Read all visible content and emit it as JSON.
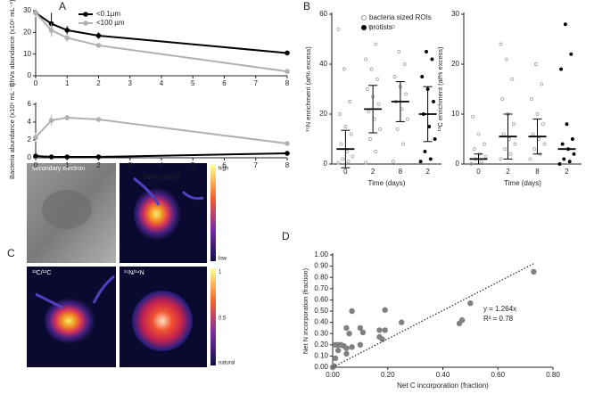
{
  "chart_data": [
    {
      "type": "line",
      "panel": "A",
      "ylabel": "EhVs abundance (x10⁶ mL⁻¹)",
      "legend": "top-right",
      "x": [
        0,
        0.5,
        1,
        2,
        8
      ],
      "xlim": [
        0,
        8
      ],
      "xticks": [
        0,
        1,
        2,
        3,
        4,
        5,
        6,
        7,
        8
      ],
      "ylim": [
        0,
        30
      ],
      "yticks": [
        0,
        10,
        20,
        30
      ],
      "series": [
        {
          "name": "<0.1µm",
          "color": "#000000",
          "values": [
            29,
            24,
            21,
            18.5,
            10.5
          ],
          "errors": [
            2,
            5,
            2,
            1.5,
            1
          ]
        },
        {
          "name": "<100 µm",
          "color": "#b0b0b0",
          "values": [
            29,
            21,
            17.5,
            14,
            2
          ],
          "errors": [
            2,
            3,
            2,
            1,
            0.8
          ]
        }
      ]
    },
    {
      "type": "line",
      "ylabel": "Bacteria abundance (x10⁶ mL⁻¹)",
      "xlabel": "Time (days)",
      "x": [
        0,
        0.5,
        1,
        2,
        8
      ],
      "xlim": [
        0,
        8
      ],
      "xticks": [
        0,
        1,
        2,
        3,
        4,
        5,
        6,
        7,
        8
      ],
      "ylim": [
        0,
        6
      ],
      "yticks": [
        0,
        2,
        4,
        6
      ],
      "series": [
        {
          "color": "#000000",
          "values": [
            0.2,
            0.1,
            0.1,
            0.1,
            0.5
          ],
          "errors": [
            0.1,
            0.1,
            0.1,
            0.1,
            0.1
          ]
        },
        {
          "color": "#b0b0b0",
          "values": [
            2.3,
            4.2,
            4.5,
            4.3,
            1.6
          ],
          "errors": [
            0.5,
            0.6,
            0.3,
            0.1,
            0.2
          ]
        }
      ]
    },
    {
      "type": "strip",
      "panel": "B",
      "ylabel": "¹⁵N enrichment (at% excess)",
      "xlabel": "Time (days)",
      "legend": "top-center",
      "categories": [
        "0",
        "2",
        "8",
        "2"
      ],
      "ylim": [
        0,
        60
      ],
      "yticks": [
        0,
        20,
        40,
        60
      ],
      "series": [
        {
          "name": "bacteria sized ROIs",
          "color": "#999999",
          "marker": "open",
          "values": [
            6,
            22,
            25,
            null
          ],
          "errors": [
            7.5,
            9.5,
            8,
            null
          ],
          "points": [
            [
              0.5,
              1,
              2,
              3,
              5,
              8,
              12,
              15,
              20,
              25,
              38,
              54
            ],
            [
              0.5,
              5,
              10,
              14,
              18,
              21,
              24,
              27,
              30,
              34,
              38,
              42,
              48,
              55
            ],
            [
              1,
              8,
              14,
              18,
              22,
              25,
              28,
              31,
              35,
              40,
              45,
              55
            ],
            null
          ]
        },
        {
          "name": "protists",
          "color": "#000000",
          "marker": "filled",
          "values": [
            null,
            null,
            null,
            20
          ],
          "errors": [
            null,
            null,
            null,
            11
          ],
          "points": [
            null,
            null,
            null,
            [
              1,
              2,
              5,
              10,
              15,
              20,
              25,
              30,
              35,
              42,
              45
            ]
          ]
        }
      ]
    },
    {
      "type": "strip",
      "ylabel": "¹³C enrichment (at% excess)",
      "xlabel": "Time (days)",
      "categories": [
        "0",
        "2",
        "8",
        "2"
      ],
      "ylim": [
        0,
        30
      ],
      "yticks": [
        0,
        10,
        20,
        30
      ],
      "series": [
        {
          "color": "#999999",
          "marker": "open",
          "values": [
            1,
            5.5,
            5.5,
            null
          ],
          "errors": [
            1,
            4.5,
            3.5,
            null
          ],
          "points": [
            [
              0,
              0.5,
              1,
              1.5,
              2,
              3,
              4,
              6,
              9.5
            ],
            [
              1,
              2,
              3,
              4,
              5,
              6,
              8,
              10,
              13,
              17,
              21,
              24
            ],
            [
              1,
              2,
              3,
              4,
              5,
              6,
              8,
              10,
              13,
              16,
              20
            ],
            null
          ]
        },
        {
          "color": "#000000",
          "marker": "filled",
          "values": [
            null,
            null,
            null,
            3
          ],
          "errors": [
            null,
            null,
            null,
            null
          ],
          "points": [
            null,
            null,
            null,
            [
              0,
              0.5,
              1,
              2,
              3,
              4,
              5,
              8,
              19,
              22,
              28
            ]
          ]
        }
      ]
    },
    {
      "type": "scatter",
      "panel": "D",
      "xlabel": "Net C incorporation (fraction)",
      "ylabel": "Net N incorporation (fraction)",
      "color": "#808080",
      "x": [
        0,
        0.005,
        0.01,
        0.01,
        0.02,
        0.02,
        0.03,
        0.04,
        0.05,
        0.05,
        0.05,
        0.06,
        0.07,
        0.07,
        0.1,
        0.1,
        0.11,
        0.17,
        0.17,
        0.18,
        0.19,
        0.19,
        0.25,
        0.46,
        0.47,
        0.5,
        0.73
      ],
      "y": [
        0,
        0.01,
        0.2,
        0.08,
        0.15,
        0.2,
        0.2,
        0.19,
        0.17,
        0.12,
        0.35,
        0.3,
        0.18,
        0.5,
        0.2,
        0.35,
        0.31,
        0.33,
        0.27,
        0.25,
        0.33,
        0.51,
        0.4,
        0.39,
        0.42,
        0.57,
        0.85
      ],
      "xlim": [
        0,
        0.8
      ],
      "xticks": [
        {
          "value": 0,
          "label": "0.00"
        },
        {
          "value": 0.2,
          "label": "0.20"
        },
        {
          "value": 0.4,
          "label": "0.40"
        },
        {
          "value": 0.6,
          "label": "0.60"
        },
        {
          "value": 0.8,
          "label": "0.80"
        }
      ],
      "ylim": [
        0,
        1
      ],
      "yticks": [
        {
          "value": 0,
          "label": "0.00"
        },
        {
          "value": 0.1,
          "label": "0.10"
        },
        {
          "value": 0.2,
          "label": "0.20"
        },
        {
          "value": 0.3,
          "label": "0.30"
        },
        {
          "value": 0.4,
          "label": "0.40"
        },
        {
          "value": 0.5,
          "label": "0.50"
        },
        {
          "value": 0.6,
          "label": "0.60"
        },
        {
          "value": 0.7,
          "label": "0.70"
        },
        {
          "value": 0.8,
          "label": "0.80"
        },
        {
          "value": 0.9,
          "label": "0.90"
        },
        {
          "value": 1,
          "label": "1.00"
        }
      ],
      "trendline": {
        "slope": 1.264
      },
      "annotations": [
        "y = 1.264x",
        "R² = 0.78"
      ]
    }
  ],
  "figure_c": {
    "panel": "C",
    "labels": [
      "secondary electron",
      "¹³C/¹²C",
      "¹⁵N/¹⁴N"
    ],
    "colorbar_top": [
      "high",
      "low"
    ],
    "colorbar_bottom": [
      "1",
      "0.5",
      "natural"
    ]
  }
}
